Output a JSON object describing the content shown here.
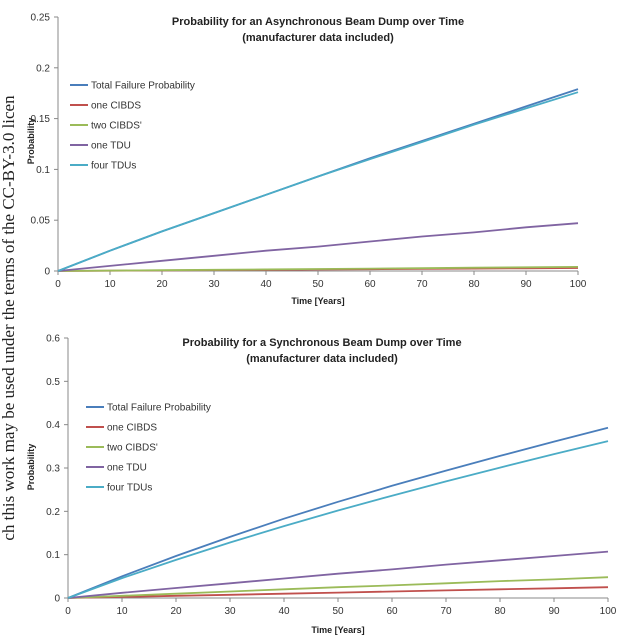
{
  "side_text": "ch this work may be used under the terms of the CC-BY-3.0 licen",
  "chart_data": [
    {
      "type": "line",
      "title": "Probability for an Asynchronous Beam Dump over Time",
      "subtitle": "(manufacturer data included)",
      "xlabel": "Time [Years]",
      "ylabel": "Probability",
      "xlim": [
        0,
        100
      ],
      "ylim": [
        0,
        0.25
      ],
      "xticks": [
        "0",
        "10",
        "20",
        "30",
        "40",
        "50",
        "60",
        "70",
        "80",
        "90",
        "100"
      ],
      "yticks": [
        "0",
        "0.05",
        "0.1",
        "0.15",
        "0.2",
        "0.25"
      ],
      "grid": false,
      "legend_position": "left",
      "x": [
        0,
        10,
        20,
        30,
        40,
        50,
        60,
        70,
        80,
        90,
        100
      ],
      "series": [
        {
          "name": "Total Failure Probability",
          "color": "#4a7ebb",
          "values": [
            0,
            0.02,
            0.039,
            0.057,
            0.075,
            0.093,
            0.111,
            0.128,
            0.145,
            0.162,
            0.179
          ]
        },
        {
          "name": "one CIBDS",
          "color": "#c0504d",
          "values": [
            0,
            0.0003,
            0.0006,
            0.0009,
            0.0012,
            0.0015,
            0.0018,
            0.0021,
            0.0024,
            0.0027,
            0.003
          ]
        },
        {
          "name": "two CIBDS'",
          "color": "#9bbb59",
          "values": [
            0,
            0.0004,
            0.0008,
            0.0012,
            0.0016,
            0.002,
            0.0024,
            0.0028,
            0.0032,
            0.0036,
            0.004
          ]
        },
        {
          "name": "one TDU",
          "color": "#8064a2",
          "values": [
            0,
            0.005,
            0.01,
            0.015,
            0.02,
            0.024,
            0.029,
            0.034,
            0.038,
            0.043,
            0.047
          ]
        },
        {
          "name": "four TDUs",
          "color": "#4bacc6",
          "values": [
            0,
            0.02,
            0.039,
            0.057,
            0.075,
            0.093,
            0.11,
            0.127,
            0.144,
            0.16,
            0.176
          ]
        }
      ]
    },
    {
      "type": "line",
      "title": "Probability for a Synchronous Beam Dump over Time",
      "subtitle": "(manufacturer data included)",
      "xlabel": "Time [Years]",
      "ylabel": "Probability",
      "xlim": [
        0,
        100
      ],
      "ylim": [
        0,
        0.6
      ],
      "xticks": [
        "0",
        "10",
        "20",
        "30",
        "40",
        "50",
        "60",
        "70",
        "80",
        "90",
        "100"
      ],
      "yticks": [
        "0",
        "0.1",
        "0.2",
        "0.3",
        "0.4",
        "0.5",
        "0.6"
      ],
      "grid": false,
      "legend_position": "left",
      "x": [
        0,
        10,
        20,
        30,
        40,
        50,
        60,
        70,
        80,
        90,
        100
      ],
      "series": [
        {
          "name": "Total Failure Probability",
          "color": "#4a7ebb",
          "values": [
            0,
            0.05,
            0.097,
            0.141,
            0.183,
            0.222,
            0.259,
            0.294,
            0.328,
            0.361,
            0.393
          ]
        },
        {
          "name": "one CIBDS",
          "color": "#c0504d",
          "values": [
            0,
            0.0025,
            0.005,
            0.0075,
            0.01,
            0.0125,
            0.015,
            0.0175,
            0.02,
            0.0225,
            0.025
          ]
        },
        {
          "name": "two CIBDS'",
          "color": "#9bbb59",
          "values": [
            0,
            0.005,
            0.01,
            0.015,
            0.02,
            0.025,
            0.029,
            0.034,
            0.039,
            0.043,
            0.048
          ]
        },
        {
          "name": "one TDU",
          "color": "#8064a2",
          "values": [
            0,
            0.012,
            0.023,
            0.034,
            0.045,
            0.056,
            0.066,
            0.077,
            0.087,
            0.097,
            0.107
          ]
        },
        {
          "name": "four TDUs",
          "color": "#4bacc6",
          "values": [
            0,
            0.046,
            0.088,
            0.128,
            0.166,
            0.202,
            0.236,
            0.269,
            0.301,
            0.332,
            0.362
          ]
        }
      ]
    }
  ]
}
